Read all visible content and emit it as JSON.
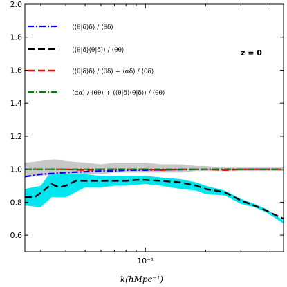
{
  "chart_data": {
    "type": "line",
    "xscale": "log",
    "xlim": [
      0.025,
      0.49
    ],
    "ylim": [
      0.5,
      2.0
    ],
    "xlabel": "k(hMpc⁻¹)",
    "ylabel": "",
    "title": "",
    "grid": false,
    "legend_position": "top-left",
    "annotation": "z = 0",
    "x_ticks": [
      {
        "value": 0.1,
        "label": "10⁻¹"
      }
    ],
    "y_ticks": [
      {
        "value": 0.6,
        "label": "0.6"
      },
      {
        "value": 0.8,
        "label": "0.8"
      },
      {
        "value": 1.0,
        "label": "1.0"
      },
      {
        "value": 1.2,
        "label": "1.2"
      },
      {
        "value": 1.4,
        "label": "1.4"
      },
      {
        "value": 1.6,
        "label": "1.6"
      },
      {
        "value": 1.8,
        "label": "1.8"
      },
      {
        "value": 2.0,
        "label": "2.0"
      }
    ],
    "legend": [
      {
        "series": 0,
        "text": "⟨⟨θ|δ⟩δ⟩ / ⟨θδ⟩"
      },
      {
        "series": 1,
        "text": "⟨⟨θ|δ⟩⟨θ|δ⟩⟩ / ⟨θθ⟩"
      },
      {
        "series": 2,
        "text": "⟨⟨θ|δ⟩δ⟩ / ⟨θδ⟩ + ⟨αδ⟩ / ⟨θδ⟩"
      },
      {
        "series": 3,
        "text": "⟨αα⟩ / ⟨θθ⟩ + ⟨⟨θ|δ⟩⟨θ|δ⟩⟩ / ⟨θθ⟩"
      }
    ],
    "bands": [
      {
        "color": "#00e5ee",
        "x": [
          0.025,
          0.03,
          0.034,
          0.04,
          0.05,
          0.06,
          0.07,
          0.08,
          0.1,
          0.12,
          0.15,
          0.18,
          0.2,
          0.25,
          0.3,
          0.35,
          0.4,
          0.45,
          0.49
        ],
        "upper": [
          0.88,
          0.9,
          0.99,
          0.97,
          0.97,
          0.96,
          0.96,
          0.96,
          0.96,
          0.95,
          0.94,
          0.92,
          0.9,
          0.87,
          0.82,
          0.79,
          0.76,
          0.72,
          0.69
        ],
        "lower": [
          0.78,
          0.77,
          0.83,
          0.83,
          0.89,
          0.89,
          0.9,
          0.9,
          0.91,
          0.9,
          0.88,
          0.87,
          0.85,
          0.84,
          0.79,
          0.77,
          0.74,
          0.7,
          0.67
        ]
      },
      {
        "color": "#c8c8c8",
        "x": [
          0.025,
          0.03,
          0.035,
          0.04,
          0.05,
          0.06,
          0.07,
          0.08,
          0.1,
          0.12,
          0.15,
          0.18,
          0.2,
          0.25,
          0.3,
          0.35,
          0.4,
          0.45,
          0.49
        ],
        "upper": [
          1.04,
          1.05,
          1.06,
          1.05,
          1.04,
          1.03,
          1.04,
          1.04,
          1.04,
          1.03,
          1.03,
          1.02,
          1.02,
          1.01,
          1.01,
          1.01,
          1.01,
          1.01,
          1.01
        ],
        "lower": [
          0.95,
          0.96,
          0.97,
          0.97,
          0.97,
          0.97,
          0.98,
          0.98,
          0.98,
          0.98,
          0.98,
          0.99,
          0.99,
          0.99,
          0.99,
          0.99,
          0.99,
          0.99,
          0.99
        ]
      }
    ],
    "series": [
      {
        "color": "#0000ff",
        "dash": "dashdot",
        "x": [
          0.025,
          0.03,
          0.035,
          0.04,
          0.05,
          0.06,
          0.07,
          0.08,
          0.1,
          0.12,
          0.15,
          0.2,
          0.25,
          0.3,
          0.4,
          0.49
        ],
        "y": [
          0.955,
          0.97,
          0.975,
          0.98,
          0.985,
          0.99,
          0.99,
          0.995,
          0.995,
          0.997,
          0.998,
          1.0,
          1.0,
          1.0,
          1.0,
          1.0
        ]
      },
      {
        "color": "#000000",
        "dash": "dashed",
        "x": [
          0.025,
          0.028,
          0.031,
          0.034,
          0.037,
          0.04,
          0.045,
          0.05,
          0.06,
          0.07,
          0.08,
          0.09,
          0.1,
          0.12,
          0.15,
          0.18,
          0.2,
          0.25,
          0.3,
          0.35,
          0.4,
          0.45,
          0.49
        ],
        "y": [
          0.83,
          0.83,
          0.87,
          0.91,
          0.89,
          0.9,
          0.93,
          0.93,
          0.93,
          0.93,
          0.93,
          0.935,
          0.935,
          0.93,
          0.92,
          0.9,
          0.88,
          0.86,
          0.81,
          0.78,
          0.75,
          0.72,
          0.7
        ]
      },
      {
        "color": "#ff0000",
        "dash": "dashed",
        "x": [
          0.025,
          0.03,
          0.04,
          0.05,
          0.06,
          0.08,
          0.1,
          0.12,
          0.15,
          0.2,
          0.25,
          0.3,
          0.4,
          0.49
        ],
        "y": [
          1.0,
          1.0,
          1.0,
          0.995,
          1.0,
          1.0,
          1.0,
          0.995,
          1.0,
          1.0,
          0.995,
          1.0,
          1.0,
          1.0
        ]
      },
      {
        "color": "#008000",
        "dash": "dashdot",
        "x": [
          0.025,
          0.03,
          0.04,
          0.05,
          0.06,
          0.08,
          0.1,
          0.12,
          0.15,
          0.2,
          0.25,
          0.3,
          0.4,
          0.49
        ],
        "y": [
          1.0,
          1.0,
          1.0,
          1.0,
          1.0,
          1.0,
          1.0,
          1.0,
          1.0,
          1.0,
          1.0,
          1.0,
          1.0,
          1.0
        ]
      }
    ]
  }
}
